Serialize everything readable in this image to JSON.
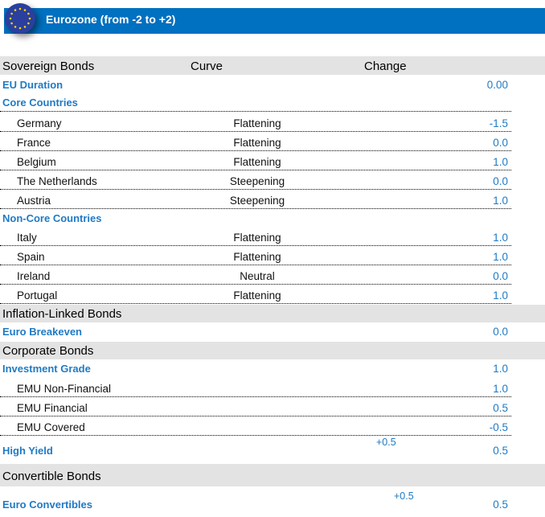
{
  "header": {
    "title": "Eurozone (from -2 to +2)",
    "icon": "eu-flag-icon",
    "accent": "#0070c0"
  },
  "columns": {
    "col1": "Sovereign Bonds",
    "col2": "Curve",
    "col3": "Change"
  },
  "eu_duration": {
    "label": "EU Duration",
    "value": "0.00"
  },
  "core": {
    "label": "Core Countries",
    "rows": [
      {
        "name": "Germany",
        "curve": "Flattening",
        "value": "-1.5"
      },
      {
        "name": "France",
        "curve": "Flattening",
        "value": "0.0"
      },
      {
        "name": "Belgium",
        "curve": "Flattening",
        "value": "1.0"
      },
      {
        "name": "The Netherlands",
        "curve": "Steepening",
        "value": "0.0"
      },
      {
        "name": "Austria",
        "curve": "Steepening",
        "value": "1.0"
      }
    ]
  },
  "noncore": {
    "label": "Non-Core  Countries",
    "rows": [
      {
        "name": "Italy",
        "curve": "Flattening",
        "value": "1.0"
      },
      {
        "name": "Spain",
        "curve": "Flattening",
        "value": "1.0"
      },
      {
        "name": "Ireland",
        "curve": "Neutral",
        "value": "0.0"
      },
      {
        "name": "Portugal",
        "curve": "Flattening",
        "value": "1.0"
      }
    ]
  },
  "inflation": {
    "section": "Inflation-Linked Bonds",
    "label": "Euro Breakeven",
    "value": "0.0"
  },
  "corporate": {
    "section": "Corporate  Bonds",
    "ig_label": "Investment Grade",
    "ig_value": "1.0",
    "rows": [
      {
        "name": "EMU Non-Financial",
        "value": "1.0"
      },
      {
        "name": "EMU Financial",
        "value": "0.5"
      },
      {
        "name": "EMU Covered",
        "value": "-0.5"
      }
    ],
    "hy_label": "High Yield",
    "hy_change": "+0.5",
    "hy_value": "0.5"
  },
  "convertible": {
    "section": "Convertible Bonds",
    "label": "Euro Convertibles",
    "change": "+0.5",
    "value": "0.5"
  }
}
